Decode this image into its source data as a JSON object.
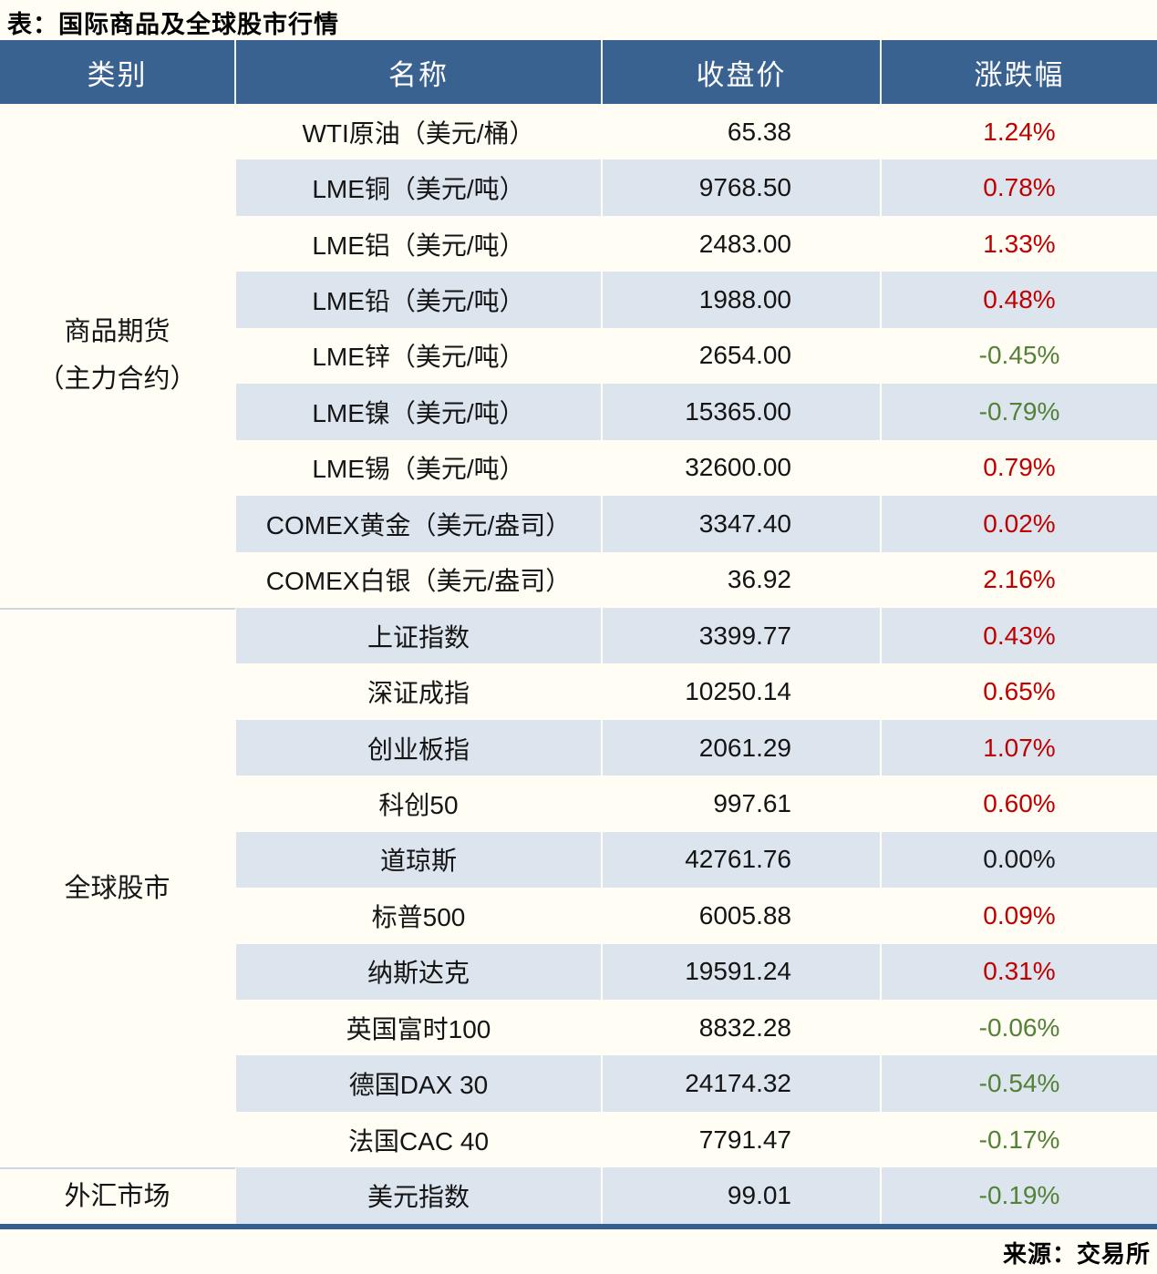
{
  "page": {
    "title": "表：国际商品及全球股市行情",
    "source_note": "来源：交易所"
  },
  "colors": {
    "header_bg": "#3a6291",
    "header_text": "#ffffff",
    "row_stripe_blue": "#dce4ee",
    "row_cream": "#fffdf4",
    "up_red": "#c00000",
    "down_green": "#538135",
    "flat_black": "#1a1a1a",
    "bottom_border_blue": "#34608f",
    "section_divider": "#c9d6e3"
  },
  "category_cells": {
    "commodity_line1": "商品期货",
    "commodity_line2": "（主力合约）",
    "stocks": "全球股市",
    "forex": "外汇市场"
  },
  "chart_data": {
    "type": "table",
    "title": "表：国际商品及全球股市行情",
    "source": "来源：交易所",
    "columns": [
      "类别",
      "名称",
      "收盘价",
      "涨跌幅"
    ],
    "rows": [
      {
        "category": "商品期货（主力合约）",
        "name": "WTI原油（美元/桶）",
        "close": "65.38",
        "change": "1.24%",
        "direction": "up"
      },
      {
        "category": "商品期货（主力合约）",
        "name": "LME铜（美元/吨）",
        "close": "9768.50",
        "change": "0.78%",
        "direction": "up"
      },
      {
        "category": "商品期货（主力合约）",
        "name": "LME铝（美元/吨）",
        "close": "2483.00",
        "change": "1.33%",
        "direction": "up"
      },
      {
        "category": "商品期货（主力合约）",
        "name": "LME铅（美元/吨）",
        "close": "1988.00",
        "change": "0.48%",
        "direction": "up"
      },
      {
        "category": "商品期货（主力合约）",
        "name": "LME锌（美元/吨）",
        "close": "2654.00",
        "change": "-0.45%",
        "direction": "down"
      },
      {
        "category": "商品期货（主力合约）",
        "name": "LME镍（美元/吨）",
        "close": "15365.00",
        "change": "-0.79%",
        "direction": "down"
      },
      {
        "category": "商品期货（主力合约）",
        "name": "LME锡（美元/吨）",
        "close": "32600.00",
        "change": "0.79%",
        "direction": "up"
      },
      {
        "category": "商品期货（主力合约）",
        "name": "COMEX黄金（美元/盎司）",
        "close": "3347.40",
        "change": "0.02%",
        "direction": "up"
      },
      {
        "category": "商品期货（主力合约）",
        "name": "COMEX白银（美元/盎司）",
        "close": "36.92",
        "change": "2.16%",
        "direction": "up"
      },
      {
        "category": "全球股市",
        "name": "上证指数",
        "close": "3399.77",
        "change": "0.43%",
        "direction": "up"
      },
      {
        "category": "全球股市",
        "name": "深证成指",
        "close": "10250.14",
        "change": "0.65%",
        "direction": "up"
      },
      {
        "category": "全球股市",
        "name": "创业板指",
        "close": "2061.29",
        "change": "1.07%",
        "direction": "up"
      },
      {
        "category": "全球股市",
        "name": "科创50",
        "close": "997.61",
        "change": "0.60%",
        "direction": "up"
      },
      {
        "category": "全球股市",
        "name": "道琼斯",
        "close": "42761.76",
        "change": "0.00%",
        "direction": "flat"
      },
      {
        "category": "全球股市",
        "name": "标普500",
        "close": "6005.88",
        "change": "0.09%",
        "direction": "up"
      },
      {
        "category": "全球股市",
        "name": "纳斯达克",
        "close": "19591.24",
        "change": "0.31%",
        "direction": "up"
      },
      {
        "category": "全球股市",
        "name": "英国富时100",
        "close": "8832.28",
        "change": "-0.06%",
        "direction": "down"
      },
      {
        "category": "全球股市",
        "name": "德国DAX 30",
        "close": "24174.32",
        "change": "-0.54%",
        "direction": "down"
      },
      {
        "category": "全球股市",
        "name": "法国CAC 40",
        "close": "7791.47",
        "change": "-0.17%",
        "direction": "down"
      },
      {
        "category": "外汇市场",
        "name": "美元指数",
        "close": "99.01",
        "change": "-0.19%",
        "direction": "down"
      }
    ]
  }
}
